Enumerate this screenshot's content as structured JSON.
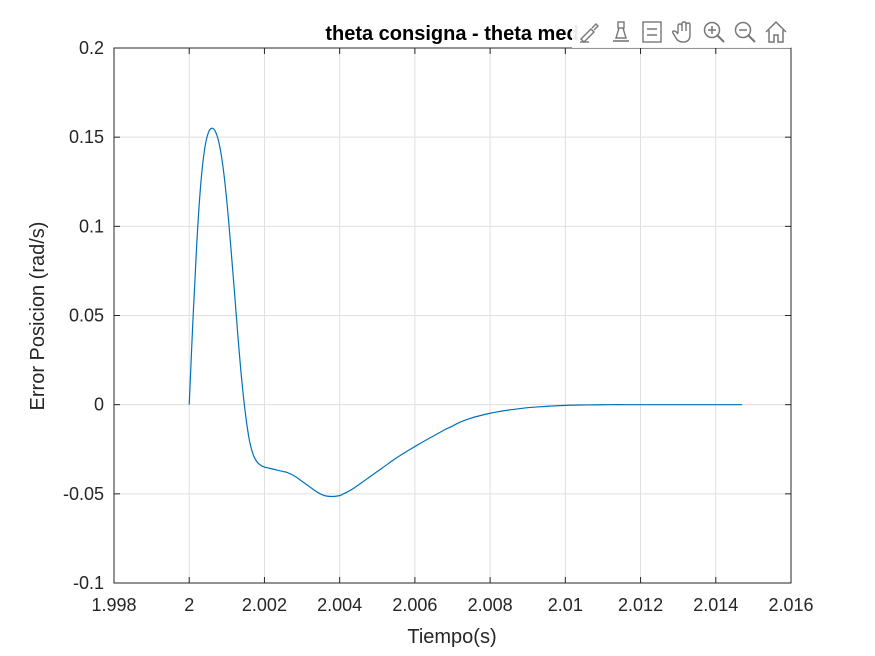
{
  "chart_data": {
    "type": "line",
    "title": "theta consigna - theta med",
    "xlabel": "Tiempo(s)",
    "ylabel": "Error Posicion (rad/s)",
    "xlim": [
      1.998,
      2.016
    ],
    "ylim": [
      -0.1,
      0.2
    ],
    "xticks": [
      "1.998",
      "2",
      "2.002",
      "2.004",
      "2.006",
      "2.008",
      "2.01",
      "2.012",
      "2.014",
      "2.016"
    ],
    "yticks": [
      "-0.1",
      "-0.05",
      "0",
      "0.05",
      "0.1",
      "0.15",
      "0.2"
    ],
    "grid": true,
    "line_color": "#0072BD",
    "series": [
      {
        "x": [
          2.0,
          2.0001,
          2.0002,
          2.0003,
          2.0004,
          2.0005,
          2.0006,
          2.0007,
          2.0008,
          2.0009,
          2.001,
          2.0011,
          2.0012,
          2.0013,
          2.0014,
          2.0015,
          2.0016,
          2.0017,
          2.0018,
          2.0019,
          2.002,
          2.0021,
          2.0022,
          2.0023,
          2.0024,
          2.0025,
          2.0026,
          2.0028,
          2.003,
          2.0032,
          2.0034,
          2.0036,
          2.0038,
          2.004,
          2.0041,
          2.0042,
          2.0044,
          2.0046,
          2.0048,
          2.005,
          2.0052,
          2.0055,
          2.0058,
          2.006,
          2.0062,
          2.0065,
          2.0068,
          2.007,
          2.0072,
          2.0075,
          2.0078,
          2.008,
          2.0082,
          2.0085,
          2.0088,
          2.009,
          2.0093,
          2.0096,
          2.01,
          2.0104,
          2.0108,
          2.0112,
          2.0116,
          2.012,
          2.0125,
          2.013,
          2.0135,
          2.014,
          2.0147
        ],
        "y": [
          0.0,
          0.048,
          0.09,
          0.122,
          0.142,
          0.152,
          0.155,
          0.153,
          0.146,
          0.133,
          0.114,
          0.09,
          0.064,
          0.037,
          0.013,
          -0.006,
          -0.02,
          -0.028,
          -0.032,
          -0.034,
          -0.035,
          -0.0355,
          -0.036,
          -0.0365,
          -0.037,
          -0.0375,
          -0.038,
          -0.04,
          -0.043,
          -0.046,
          -0.049,
          -0.051,
          -0.0515,
          -0.051,
          -0.05,
          -0.049,
          -0.0465,
          -0.0435,
          -0.0405,
          -0.0375,
          -0.0345,
          -0.03,
          -0.026,
          -0.0235,
          -0.021,
          -0.0175,
          -0.014,
          -0.012,
          -0.0098,
          -0.0075,
          -0.0058,
          -0.0048,
          -0.004,
          -0.003,
          -0.0022,
          -0.0017,
          -0.0012,
          -0.0008,
          -0.0004,
          -0.0002,
          -0.0001,
          0.0,
          0.0,
          0.0,
          0.0,
          0.0,
          0.0,
          0.0,
          0.0
        ]
      }
    ]
  },
  "toolbar": {
    "icons": [
      "brush-icon",
      "data-tip-icon",
      "legend-icon",
      "pan-icon",
      "zoom-in-icon",
      "zoom-out-icon",
      "home-icon"
    ]
  }
}
